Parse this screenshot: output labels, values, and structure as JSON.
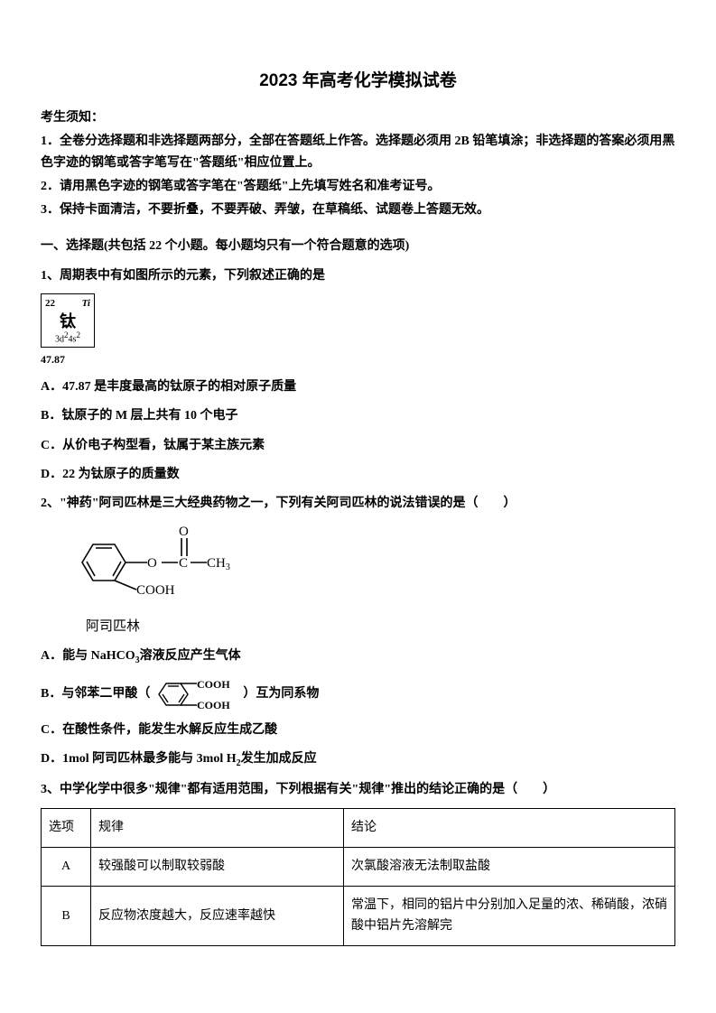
{
  "title": "2023 年高考化学模拟试卷",
  "instructions": {
    "header": "考生须知：",
    "line1": "1．全卷分选择题和非选择题两部分，全部在答题纸上作答。选择题必须用 2B 铅笔填涂；非选择题的答案必须用黑色字迹的钢笔或答字笔写在\"答题纸\"相应位置上。",
    "line2": "2．请用黑色字迹的钢笔或答字笔在\"答题纸\"上先填写姓名和准考证号。",
    "line3": "3．保持卡面清洁，不要折叠，不要弄破、弄皱，在草稿纸、试题卷上答题无效。"
  },
  "section1": "一、选择题(共包括 22 个小题。每小题均只有一个符合题意的选项)",
  "q1": {
    "text": "1、周期表中有如图所示的元素，下列叙述正确的是",
    "element": {
      "number": "22",
      "symbol": "Ti",
      "name": "钛",
      "config_html": "3d<sup>2</sup>4s<sup>2</sup>",
      "mass": "47.87"
    },
    "optA": "A．47.87 是丰度最高的钛原子的相对原子质量",
    "optB": "B．钛原子的 M 层上共有 10 个电子",
    "optC": "C．从价电子构型看，钛属于某主族元素",
    "optD": "D．22 为钛原子的质量数"
  },
  "q2": {
    "text": "2、\"神药\"阿司匹林是三大经典药物之一，下列有关阿司匹林的说法错误的是（　　）",
    "label": "阿司匹林",
    "optA_html": "A．能与 NaHCO<sub>3</sub>溶液反应产生气体",
    "optB_prefix": "B．与邻苯二甲酸（",
    "optB_suffix": "）互为同系物",
    "optC": "C．在酸性条件，能发生水解反应生成乙酸",
    "optD_html": "D．1mol 阿司匹林最多能与 3mol H<sub>2</sub>发生加成反应"
  },
  "q3": {
    "text": "3、中学化学中很多\"规律\"都有适用范围，下列根据有关\"规律\"推出的结论正确的是（　　）",
    "table": {
      "headers": [
        "选项",
        "规律",
        "结论"
      ],
      "rows": [
        {
          "opt": "A",
          "rule": "较强酸可以制取较弱酸",
          "conclusion": "次氯酸溶液无法制取盐酸"
        },
        {
          "opt": "B",
          "rule": "反应物浓度越大，反应速率越快",
          "conclusion": "常温下，相同的铝片中分别加入足量的浓、稀硝酸，浓硝酸中铝片先溶解完"
        }
      ]
    }
  },
  "colors": {
    "text": "#000000",
    "background": "#ffffff",
    "border": "#000000"
  }
}
